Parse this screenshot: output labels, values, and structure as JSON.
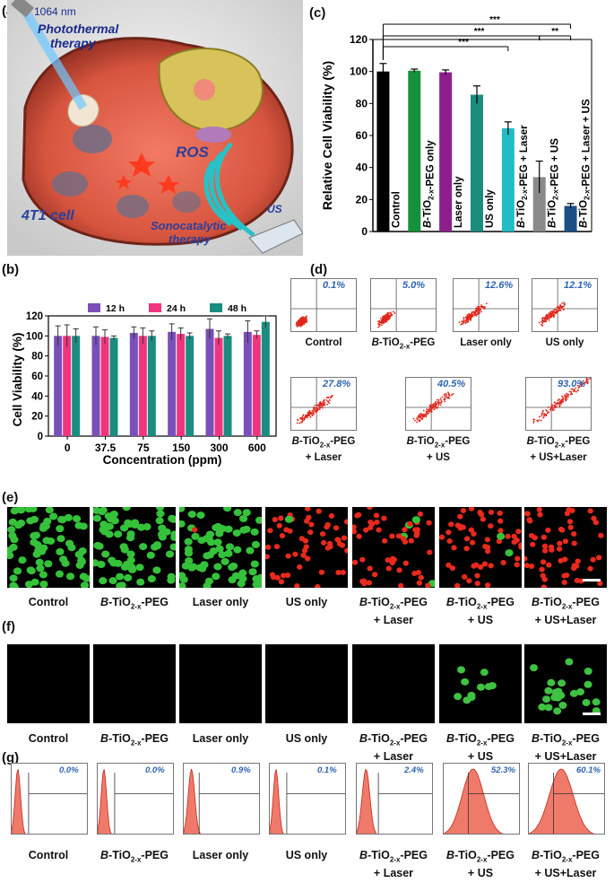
{
  "panels": {
    "a": "(a)",
    "b": "(b)",
    "c": "(c)",
    "d": "(d)",
    "e": "(e)",
    "f": "(f)",
    "g": "(g)"
  },
  "schematic": {
    "laser_label": "1064 nm",
    "photothermal": [
      "Photothermal",
      "therapy"
    ],
    "ros": "ROS",
    "cell": "4T1 cell",
    "us": "US",
    "sonocatalytic": [
      "Sonocatalytic",
      "therapy"
    ]
  },
  "group_labels": [
    "Control",
    "B-TiO2-x-PEG",
    "Laser only",
    "US only",
    "B-TiO2-x-PEG + Laser",
    "B-TiO2-x-PEG + US",
    "B-TiO2-x-PEG + US+Laser"
  ],
  "flow_percentages": [
    "0.1%",
    "5.0%",
    "12.6%",
    "12.1%",
    "27.8%",
    "40.5%",
    "93.0%"
  ],
  "histogram_percentages": [
    "0.0%",
    "0.0%",
    "0.9%",
    "0.1%",
    "2.4%",
    "52.3%",
    "60.1%"
  ],
  "chart_data": [
    {
      "type": "bar",
      "panel": "b",
      "ylabel": "Cell Viability (%)",
      "xlabel": "Concentration (ppm)",
      "categories": [
        "0",
        "37.5",
        "75",
        "150",
        "300",
        "600"
      ],
      "ylim": [
        0,
        120
      ],
      "yticks": [
        0,
        20,
        40,
        60,
        80,
        100,
        120
      ],
      "legend_position": "top",
      "series": [
        {
          "name": "12 h",
          "color": "#7a4fb8",
          "values": [
            100,
            100,
            103,
            104,
            107,
            104
          ],
          "errors": [
            10,
            9,
            6,
            8,
            10,
            11
          ]
        },
        {
          "name": "24 h",
          "color": "#f0357e",
          "values": [
            100,
            99,
            100,
            102,
            98,
            101
          ],
          "errors": [
            11,
            7,
            8,
            6,
            7,
            4
          ]
        },
        {
          "name": "48 h",
          "color": "#1a8c80",
          "values": [
            100,
            98,
            100,
            100,
            100,
            114
          ],
          "errors": [
            7,
            2,
            5,
            3,
            2,
            6
          ]
        }
      ]
    },
    {
      "type": "bar",
      "panel": "c",
      "ylabel": "Relative Cell Viability (%)",
      "ylim": [
        0,
        120
      ],
      "yticks": [
        0,
        20,
        40,
        60,
        80,
        100,
        120
      ],
      "categories": [
        "Control",
        "B-TiO2-x-PEG only",
        "Laser only",
        "US only",
        "B-TiO2-x-PEG + Laser",
        "B-TiO2-x-PEG + US",
        "B-TiO2-x-PEG + Laser + US"
      ],
      "values": [
        100,
        100.5,
        99.5,
        85.5,
        64.5,
        34,
        16
      ],
      "errors": [
        5,
        1,
        1.5,
        5.5,
        4,
        10,
        1.5
      ],
      "colors": [
        "#000000",
        "#13913c",
        "#8e1f8a",
        "#1a8c80",
        "#22bcc4",
        "#8a8a8a",
        "#1c4f86"
      ],
      "significance": [
        {
          "from": 0,
          "to": 4,
          "label": "***"
        },
        {
          "from": 0,
          "to": 5,
          "label": "***"
        },
        {
          "from": 0,
          "to": 6,
          "label": "***"
        },
        {
          "from": 5,
          "to": 6,
          "label": "**"
        }
      ]
    }
  ]
}
